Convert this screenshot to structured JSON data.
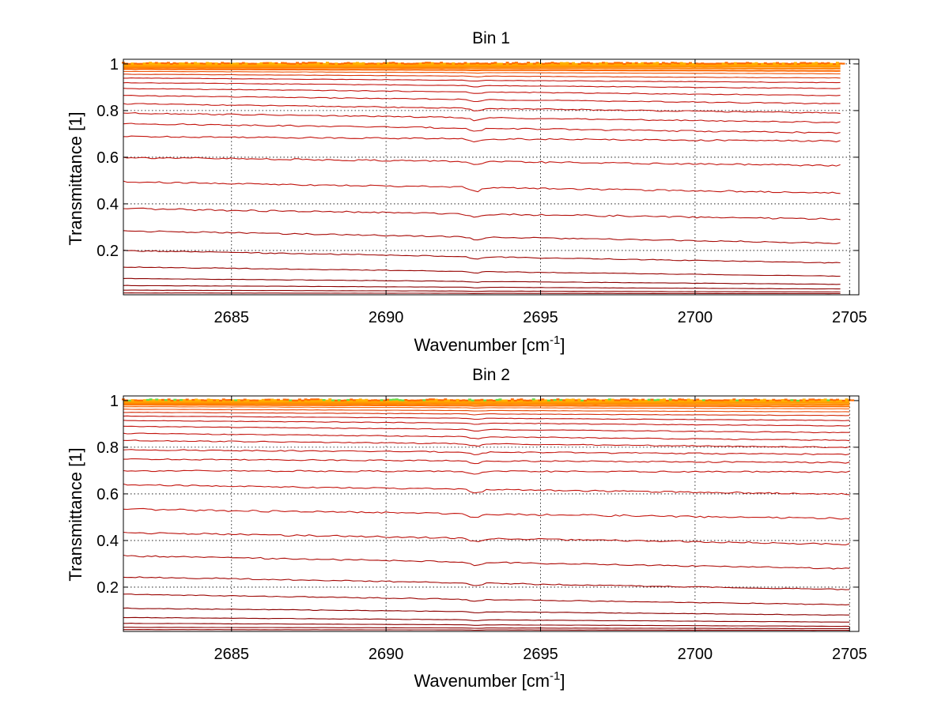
{
  "chart_data": [
    {
      "type": "line",
      "title": "Bin 1",
      "xlabel": "Wavenumber [cm",
      "xlabel_sup": "-1",
      "xlabel_end": "]",
      "ylabel": "Transmittance [1]",
      "xlim": [
        2681.5,
        2705.3
      ],
      "ylim": [
        0.01,
        1.02
      ],
      "xticks": [
        2685,
        2690,
        2695,
        2700,
        2705
      ],
      "yticks": [
        0.2,
        0.4,
        0.6,
        0.8,
        1
      ],
      "grid": true,
      "x_end": 2704.7,
      "series_summary": "family of transmittance spectra, one per level",
      "baseline_start": [
        0.999,
        0.995,
        0.99,
        0.985,
        0.978,
        0.968,
        0.956,
        0.94,
        0.92,
        0.895,
        0.865,
        0.83,
        0.79,
        0.745,
        0.69,
        0.6,
        0.495,
        0.38,
        0.285,
        0.2,
        0.13,
        0.08,
        0.05,
        0.03,
        0.018
      ],
      "baseline_end": [
        0.999,
        0.994,
        0.988,
        0.98,
        0.97,
        0.958,
        0.94,
        0.92,
        0.895,
        0.865,
        0.83,
        0.79,
        0.75,
        0.705,
        0.67,
        0.565,
        0.448,
        0.335,
        0.232,
        0.147,
        0.09,
        0.055,
        0.035,
        0.022,
        0.015
      ]
    },
    {
      "type": "line",
      "title": "Bin 2",
      "xlabel": "Wavenumber [cm",
      "xlabel_sup": "-1",
      "xlabel_end": "]",
      "ylabel": "Transmittance [1]",
      "xlim": [
        2681.5,
        2705.3
      ],
      "ylim": [
        0.01,
        1.02
      ],
      "xticks": [
        2685,
        2690,
        2695,
        2700,
        2705
      ],
      "yticks": [
        0.2,
        0.4,
        0.6,
        0.8,
        1
      ],
      "grid": true,
      "x_end": 2705.0,
      "series_summary": "family of transmittance spectra, one per level",
      "baseline_start": [
        1.0,
        0.997,
        0.993,
        0.988,
        0.982,
        0.974,
        0.963,
        0.95,
        0.934,
        0.915,
        0.89,
        0.86,
        0.83,
        0.79,
        0.75,
        0.7,
        0.64,
        0.535,
        0.435,
        0.335,
        0.245,
        0.17,
        0.11,
        0.07,
        0.045,
        0.028,
        0.018
      ],
      "baseline_end": [
        1.0,
        0.996,
        0.99,
        0.983,
        0.975,
        0.965,
        0.952,
        0.936,
        0.915,
        0.892,
        0.863,
        0.83,
        0.8,
        0.77,
        0.735,
        0.695,
        0.6,
        0.495,
        0.385,
        0.28,
        0.19,
        0.125,
        0.08,
        0.05,
        0.032,
        0.022,
        0.015
      ]
    }
  ],
  "colors": {
    "axis": "#000000",
    "grid": "#000000",
    "dark_red": "#8b0000",
    "red": "#c4150f",
    "orange": "#ff6a00",
    "yellow_orange": "#ffb000",
    "green": "#66dd44"
  }
}
